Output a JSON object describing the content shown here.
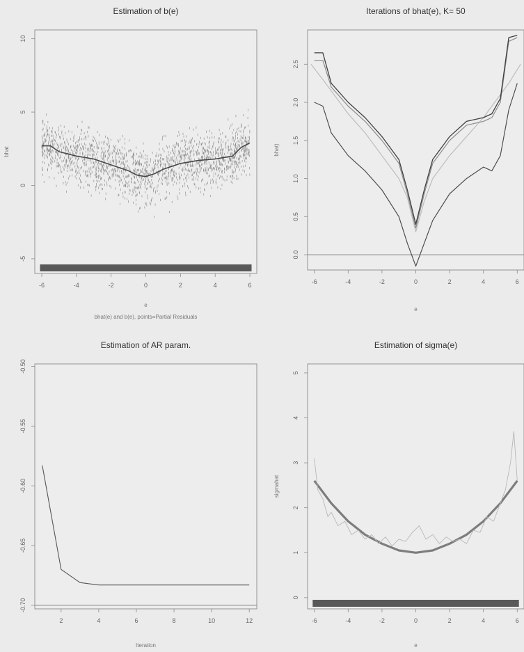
{
  "chart_data": [
    {
      "type": "scatter",
      "title": "Estimation of b(e)",
      "xlabel": "e",
      "ylabel": "bhat",
      "subtitle": "bhat(e) and b(e), points=Partial Residuals",
      "xlim": [
        -6.4,
        6.4
      ],
      "ylim": [
        -6.0,
        10.6
      ],
      "xticks": [
        -6,
        -4,
        -2,
        0,
        2,
        4,
        6
      ],
      "xtick_labels": [
        "-6",
        "-4",
        "-2",
        "0",
        "2",
        "4",
        "6"
      ],
      "yticks": [
        -5,
        0,
        5,
        10
      ],
      "ytick_labels": [
        "-5",
        "0",
        "5",
        "10"
      ],
      "grid": false,
      "rug": true,
      "points_note": "dense cloud of about 2000 partial residuals around the curve, spread roughly ±2.5",
      "series": [
        {
          "x": [
            -6,
            -5.5,
            -5,
            -4,
            -3,
            -2,
            -1,
            -0.5,
            0,
            0.5,
            1,
            2,
            3,
            4,
            4.5,
            5,
            5.5,
            6
          ],
          "y": [
            2.7,
            2.7,
            2.3,
            2.0,
            1.8,
            1.4,
            1.0,
            0.7,
            0.6,
            0.8,
            1.1,
            1.5,
            1.7,
            1.8,
            1.9,
            2.0,
            2.6,
            2.9
          ]
        }
      ]
    },
    {
      "type": "line",
      "title": "Iterations of bhat(e), K= 50",
      "xlabel": "e",
      "ylabel": "bhat)",
      "xlim": [
        -6.4,
        6.4
      ],
      "ylim": [
        -0.2,
        2.95
      ],
      "xticks": [
        -6,
        -4,
        -2,
        0,
        2,
        4,
        6
      ],
      "xtick_labels": [
        "-6",
        "-4",
        "-2",
        "0",
        "2",
        "4",
        "6"
      ],
      "yticks": [
        0.0,
        0.5,
        1.0,
        1.5,
        2.0,
        2.5
      ],
      "ytick_labels": [
        "0.0",
        "0.5",
        "1.0",
        "1.5",
        "2.0",
        "2.5"
      ],
      "grid": false,
      "hline": 0,
      "series": [
        {
          "x": [
            -6.2,
            -5.5,
            -5,
            -4,
            -3,
            -2,
            -1,
            -0.5,
            0,
            0.5,
            1,
            2,
            3,
            4,
            4.5,
            5,
            5.5,
            6.2
          ],
          "y": [
            2.5,
            2.3,
            2.15,
            1.85,
            1.6,
            1.3,
            1.0,
            0.75,
            0.3,
            0.7,
            1.0,
            1.3,
            1.55,
            1.8,
            1.95,
            2.1,
            2.25,
            2.5
          ]
        },
        {
          "x": [
            -6,
            -5.5,
            -5,
            -4,
            -3,
            -2,
            -1,
            -0.5,
            0,
            0.5,
            1,
            2,
            3,
            4,
            4.5,
            5,
            5.5,
            6
          ],
          "y": [
            2.0,
            1.95,
            1.6,
            1.3,
            1.1,
            0.85,
            0.5,
            0.15,
            -0.15,
            0.15,
            0.45,
            0.8,
            1.0,
            1.15,
            1.1,
            1.3,
            1.9,
            2.25
          ]
        },
        {
          "x": [
            -6,
            -5.5,
            -5,
            -4,
            -3,
            -2,
            -1,
            -0.5,
            0,
            0.5,
            1,
            2,
            3,
            4,
            4.5,
            5,
            5.5,
            6
          ],
          "y": [
            2.55,
            2.55,
            2.2,
            1.95,
            1.75,
            1.5,
            1.2,
            0.8,
            0.35,
            0.8,
            1.2,
            1.5,
            1.7,
            1.75,
            1.8,
            2.0,
            2.8,
            2.85
          ]
        },
        {
          "x": [
            -6,
            -5.5,
            -5,
            -4,
            -3,
            -2,
            -1,
            -0.5,
            0,
            0.5,
            1,
            2,
            3,
            4,
            4.5,
            5,
            5.5,
            6
          ],
          "y": [
            2.65,
            2.65,
            2.25,
            2.0,
            1.8,
            1.55,
            1.25,
            0.85,
            0.4,
            0.85,
            1.25,
            1.55,
            1.75,
            1.8,
            1.85,
            2.05,
            2.85,
            2.88
          ]
        }
      ]
    },
    {
      "type": "line",
      "title": "Estimation of AR param.",
      "xlabel": "Iteration",
      "ylabel": "",
      "xlim": [
        0.6,
        12.4
      ],
      "ylim": [
        -0.703,
        -0.498
      ],
      "xticks": [
        2,
        4,
        6,
        8,
        10,
        12
      ],
      "xtick_labels": [
        "2",
        "4",
        "6",
        "8",
        "10",
        "12"
      ],
      "yticks": [
        -0.5,
        -0.55,
        -0.6,
        -0.65,
        -0.7
      ],
      "ytick_labels": [
        "-0.50",
        "-0.55",
        "-0.60",
        "-0.65",
        "-0.70"
      ],
      "grid": false,
      "hline": -0.7,
      "series": [
        {
          "x": [
            1,
            2,
            3,
            4,
            5,
            6,
            7,
            8,
            9,
            10,
            11,
            12
          ],
          "y": [
            -0.583,
            -0.67,
            -0.681,
            -0.683,
            -0.683,
            -0.683,
            -0.683,
            -0.683,
            -0.683,
            -0.683,
            -0.683,
            -0.683
          ]
        }
      ]
    },
    {
      "type": "line",
      "title": "Estimation of sigma(e)",
      "xlabel": "e",
      "ylabel": "sigmahat",
      "xlim": [
        -6.4,
        6.4
      ],
      "ylim": [
        -0.25,
        5.2
      ],
      "xticks": [
        -6,
        -4,
        -2,
        0,
        2,
        4,
        6
      ],
      "xtick_labels": [
        "-6",
        "-4",
        "-2",
        "0",
        "2",
        "4",
        "6"
      ],
      "yticks": [
        0,
        1,
        2,
        3,
        4,
        5
      ],
      "ytick_labels": [
        "0",
        "1",
        "2",
        "3",
        "4",
        "5"
      ],
      "grid": false,
      "rug": true,
      "series": [
        {
          "x": [
            -6,
            -5,
            -4,
            -3,
            -2,
            -1,
            0,
            1,
            2,
            3,
            4,
            5,
            6
          ],
          "y": [
            2.6,
            2.1,
            1.7,
            1.4,
            1.2,
            1.05,
            1.0,
            1.05,
            1.2,
            1.4,
            1.7,
            2.1,
            2.6
          ]
        },
        {
          "x": [
            -6,
            -5.8,
            -5.5,
            -5.2,
            -5,
            -4.6,
            -4.2,
            -3.8,
            -3.4,
            -3,
            -2.6,
            -2.2,
            -1.8,
            -1.4,
            -1,
            -0.6,
            -0.2,
            0.2,
            0.6,
            1,
            1.4,
            1.8,
            2.2,
            2.6,
            3,
            3.4,
            3.8,
            4.2,
            4.6,
            5,
            5.3,
            5.6,
            5.8,
            6
          ],
          "y": [
            3.1,
            2.4,
            2.2,
            1.8,
            1.9,
            1.6,
            1.7,
            1.4,
            1.5,
            1.3,
            1.4,
            1.2,
            1.35,
            1.15,
            1.3,
            1.25,
            1.45,
            1.6,
            1.3,
            1.4,
            1.2,
            1.35,
            1.25,
            1.3,
            1.2,
            1.5,
            1.45,
            1.8,
            1.7,
            2.1,
            2.4,
            3.0,
            3.7,
            2.6
          ]
        }
      ]
    }
  ]
}
